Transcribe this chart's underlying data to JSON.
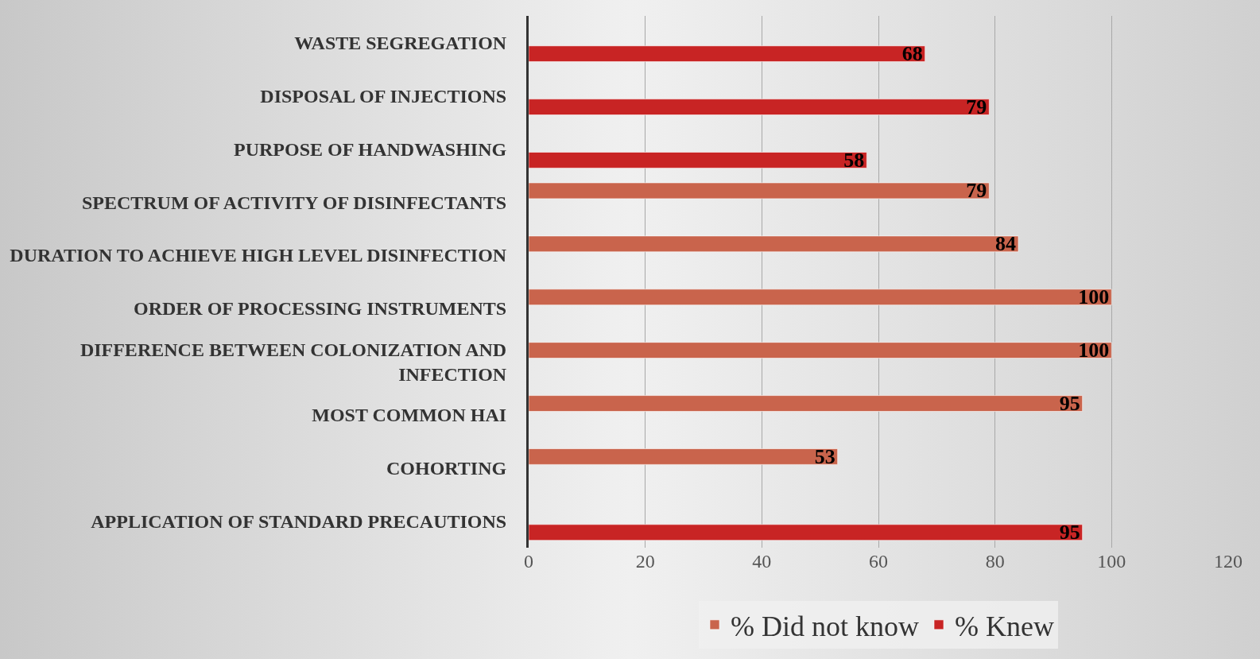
{
  "chart_data": {
    "type": "bar",
    "orientation": "horizontal",
    "categories": [
      "WASTE SEGREGATION",
      "DISPOSAL OF INJECTIONS",
      "PURPOSE OF HANDWASHING",
      "SPECTRUM OF ACTIVITY OF DISINFECTANTS",
      "DURATION TO ACHIEVE HIGH LEVEL DISINFECTION",
      "ORDER OF PROCESSING INSTRUMENTS",
      "DIFFERENCE BETWEEN COLONIZATION AND INFECTION",
      "MOST COMMON HAI",
      "COHORTING",
      "APPLICATION OF STANDARD PRECAUTIONS"
    ],
    "series": [
      {
        "name": "% Did not know",
        "color": "#c9644c",
        "values": [
          null,
          null,
          null,
          79,
          84,
          100,
          100,
          95,
          53,
          null
        ]
      },
      {
        "name": "% Knew",
        "color": "#c82424",
        "values": [
          68,
          79,
          58,
          null,
          null,
          null,
          null,
          null,
          null,
          95
        ]
      }
    ],
    "xlim": [
      0,
      120
    ],
    "xticks": [
      0,
      20,
      40,
      60,
      80,
      100,
      120
    ],
    "grid": "x",
    "legend": "bottom",
    "data_labels": true
  }
}
